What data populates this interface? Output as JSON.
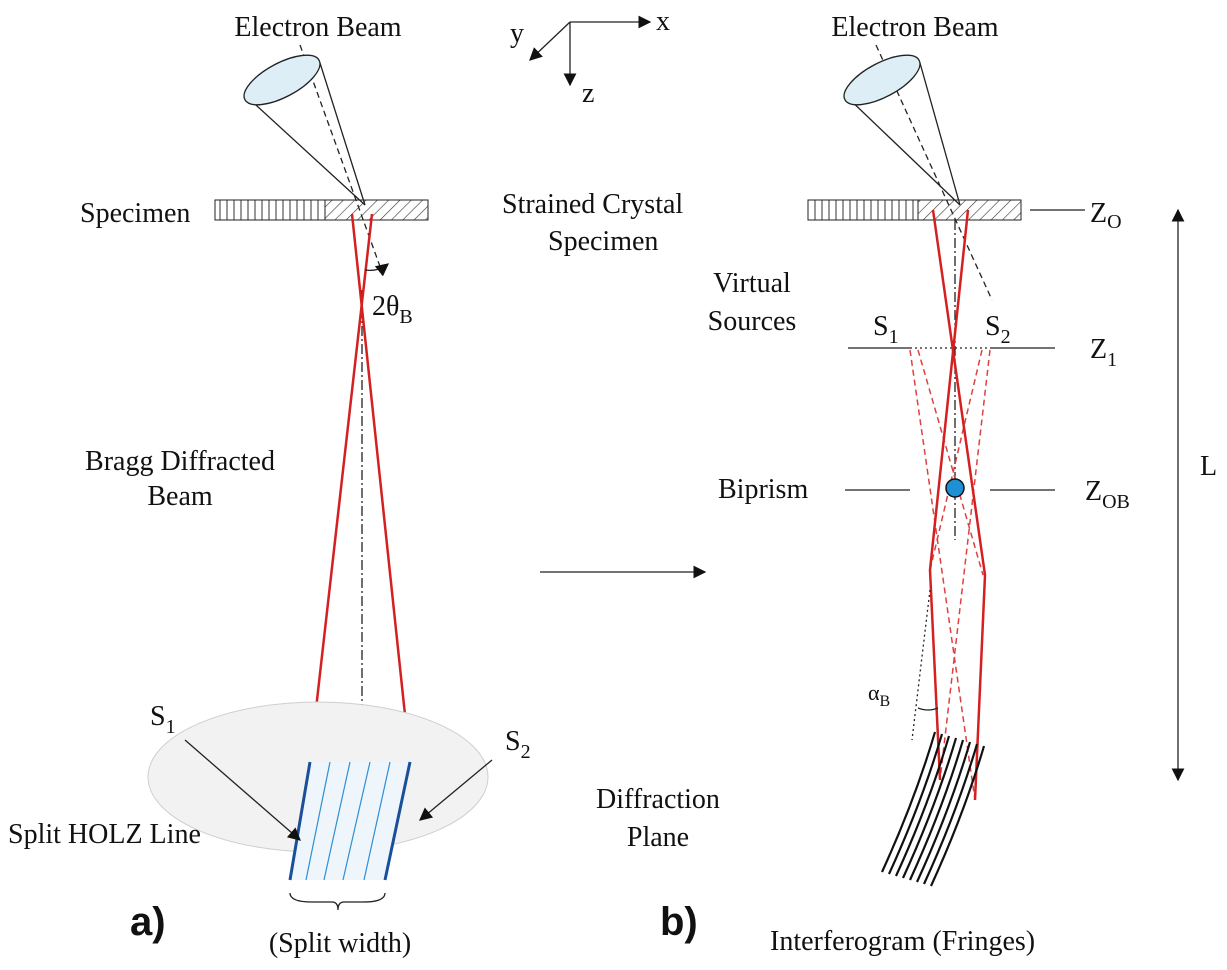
{
  "axes": {
    "x": "x",
    "y": "y",
    "z": "z"
  },
  "panel_a": {
    "beam": "Electron Beam",
    "specimen": "Specimen",
    "angle": {
      "text": "2θ",
      "sub": "B"
    },
    "diffracted": [
      "Bragg Diffracted",
      "Beam"
    ],
    "s1": {
      "text": "S",
      "sub": "1"
    },
    "s2": {
      "text": "S",
      "sub": "2"
    },
    "holz": "Split HOLZ Line",
    "tag": "a)",
    "width": "(Split width)"
  },
  "panel_b": {
    "beam": "Electron Beam",
    "specimen": [
      "Strained Crystal",
      "Specimen"
    ],
    "sources": [
      "Virtual",
      "Sources"
    ],
    "s1": {
      "text": "S",
      "sub": "1"
    },
    "s2": {
      "text": "S",
      "sub": "2"
    },
    "z0": {
      "text": "Z",
      "sub": "O"
    },
    "z1": {
      "text": "Z",
      "sub": "1"
    },
    "zob": {
      "text": "Z",
      "sub": "OB"
    },
    "length": "L",
    "biprism": "Biprism",
    "plane": [
      "Diffraction",
      "Plane"
    ],
    "alpha": {
      "text": "α",
      "sub": "B"
    },
    "tag": "b)",
    "fringes": "Interferogram (Fringes)"
  }
}
